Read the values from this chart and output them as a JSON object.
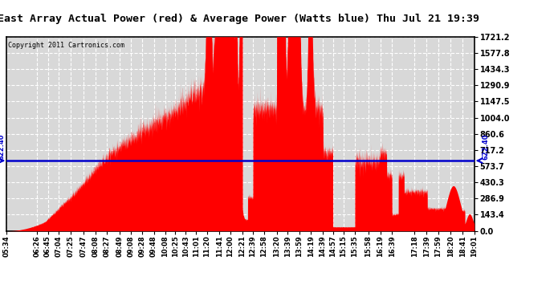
{
  "title": "East Array Actual Power (red) & Average Power (Watts blue) Thu Jul 21 19:39",
  "copyright": "Copyright 2011 Cartronics.com",
  "average_power": 622.4,
  "y_max": 1721.2,
  "y_min": 0.0,
  "y_ticks": [
    0.0,
    143.4,
    286.9,
    430.3,
    573.7,
    717.2,
    860.6,
    1004.0,
    1147.5,
    1290.9,
    1434.3,
    1577.8,
    1721.2
  ],
  "background_color": "#d8d8d8",
  "fill_color": "#ff0000",
  "line_color": "#0000cc",
  "title_fontsize": 9.5,
  "x_labels": [
    "05:34",
    "06:26",
    "06:45",
    "07:04",
    "07:25",
    "07:47",
    "08:08",
    "08:27",
    "08:49",
    "09:08",
    "09:28",
    "09:48",
    "10:08",
    "10:25",
    "10:43",
    "11:01",
    "11:20",
    "11:41",
    "12:00",
    "12:21",
    "12:39",
    "12:58",
    "13:20",
    "13:39",
    "13:59",
    "14:19",
    "14:39",
    "14:57",
    "15:15",
    "15:35",
    "15:58",
    "16:19",
    "16:39",
    "17:18",
    "17:39",
    "17:59",
    "18:20",
    "18:41",
    "19:01"
  ],
  "start_time": "05:34",
  "end_time": "19:01"
}
